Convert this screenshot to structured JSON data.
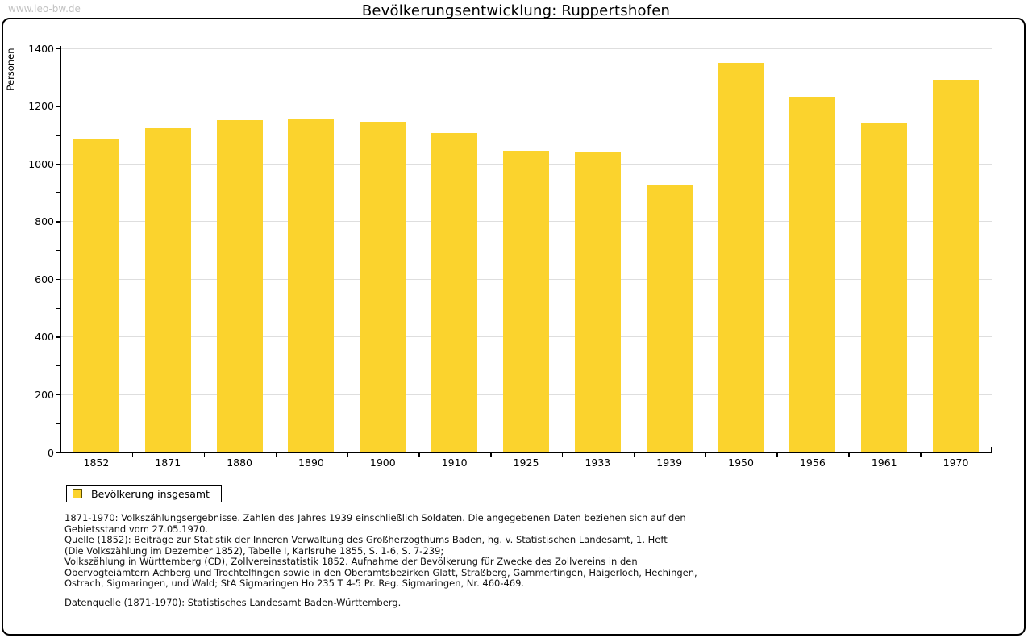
{
  "watermark": "www.leo-bw.de",
  "title": "Bevölkerungsentwicklung: Ruppertshofen",
  "chart_data": {
    "type": "bar",
    "title": "Bevölkerungsentwicklung: Ruppertshofen",
    "xlabel": "",
    "ylabel": "Personen",
    "categories": [
      "1852",
      "1871",
      "1880",
      "1890",
      "1900",
      "1910",
      "1925",
      "1933",
      "1939",
      "1950",
      "1956",
      "1961",
      "1970"
    ],
    "values": [
      1088,
      1122,
      1150,
      1153,
      1145,
      1106,
      1045,
      1040,
      928,
      1351,
      1233,
      1139,
      1292
    ],
    "ylim": [
      0,
      1400
    ],
    "ytick_step": 200,
    "minor_tick_step": 100,
    "grid": true,
    "bar_color": "#FBD32D",
    "gridline_color": "#dedede",
    "legend_position": "bottom-left",
    "legend": [
      {
        "label": "Bevölkerung insgesamt",
        "color": "#FBD32D"
      }
    ]
  },
  "footnotes": {
    "lines": [
      "1871-1970: Volkszählungsergebnisse. Zahlen des Jahres 1939 einschließlich Soldaten. Die angegebenen Daten beziehen sich auf den",
      "Gebietsstand vom 27.05.1970.",
      "Quelle (1852): Beiträge zur Statistik der Inneren Verwaltung des Großherzogthums Baden, hg. v. Statistischen Landesamt, 1. Heft",
      "(Die Volkszählung im Dezember 1852), Tabelle I, Karlsruhe 1855, S. 1-6, S. 7-239;",
      "Volkszählung in Württemberg (CD), Zollvereinsstatistik 1852. Aufnahme der Bevölkerung für Zwecke des Zollvereins in den",
      "Obervogteiämtern Achberg und Trochtelfingen sowie in den Oberamtsbezirken Glatt, Straßberg, Gammertingen, Haigerloch, Hechingen,",
      "Ostrach, Sigmaringen, und Wald; StA Sigmaringen Ho 235 T 4-5 Pr. Reg. Sigmaringen, Nr. 460-469."
    ],
    "datasource": "Datenquelle (1871-1970): Statistisches Landesamt Baden-Württemberg."
  }
}
